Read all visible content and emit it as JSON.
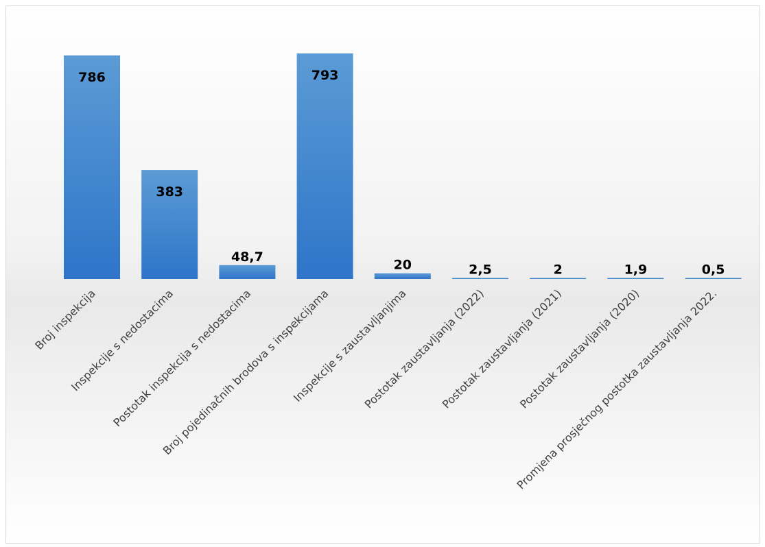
{
  "chart_data": {
    "type": "bar",
    "title": "",
    "xlabel": "",
    "ylabel": "",
    "ylim": [
      0,
      800
    ],
    "grid": false,
    "legend": "none",
    "categories": [
      "Broj inspekcija",
      "Inspekcije s nedostacima",
      "Postotak inspekcija s nedostacima",
      "Broj pojedinačnih brodova s inspekcijama",
      "Inspekcije s zaustavljanjima",
      "Postotak zaustavljanja (2022)",
      "Postotak zaustavljanja (2021)",
      "Postotak zaustavljanja (2020)",
      "Promjena prosječnog postotka zaustavljanja 2022."
    ],
    "values": [
      786,
      383,
      48.7,
      793,
      20,
      2.5,
      2,
      1.9,
      0.5
    ],
    "data_labels": [
      "786",
      "383",
      "48,7",
      "793",
      "20",
      "2,5",
      "2",
      "1,9",
      "0,5"
    ],
    "colors": {
      "bar_top": "#5b9bd5",
      "bar_bottom": "#2e75c9",
      "label": "#000000",
      "axis_text": "#404040"
    }
  }
}
